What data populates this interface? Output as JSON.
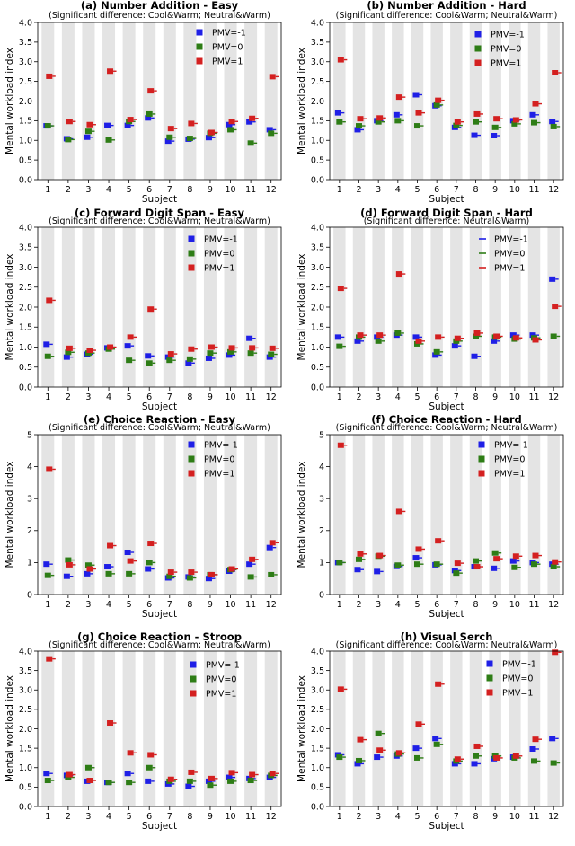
{
  "colors": {
    "pmv_neg1": "#1f1fe6",
    "pmv_0": "#2e7d16",
    "pmv_1": "#d42020",
    "band": "#e4e4e4"
  },
  "chart_data": [
    {
      "type": "scatter",
      "title": "(a) Number Addition - Easy",
      "subtitle": "(Significant difference: Cool&Warm; Neutral&Warm)",
      "xlabel": "Subject",
      "ylabel": "Mental workload index",
      "ylim": [
        0,
        4
      ],
      "yticks": [
        "0.0",
        "0.5",
        "1.0",
        "1.5",
        "2.0",
        "2.5",
        "3.0",
        "3.5",
        "4.0"
      ],
      "categories": [
        "1",
        "2",
        "3",
        "4",
        "5",
        "6",
        "7",
        "8",
        "9",
        "10",
        "11",
        "12"
      ],
      "legend_style": "square",
      "series": [
        {
          "name": "PMV=-1",
          "values": [
            1.37,
            1.04,
            1.08,
            1.38,
            1.38,
            1.57,
            0.98,
            1.03,
            1.07,
            1.4,
            1.47,
            1.27
          ]
        },
        {
          "name": "PMV=0",
          "values": [
            1.37,
            1.02,
            1.23,
            1.01,
            1.48,
            1.67,
            1.08,
            1.05,
            1.18,
            1.27,
            0.93,
            1.18
          ]
        },
        {
          "name": "PMV=1",
          "values": [
            2.63,
            1.48,
            1.4,
            2.76,
            1.53,
            2.26,
            1.3,
            1.43,
            1.2,
            1.48,
            1.56,
            2.62
          ]
        }
      ]
    },
    {
      "type": "scatter",
      "title": "(b) Number Addition - Hard",
      "subtitle": "(Significant difference: Cool&Warm; Neutral&Warm)",
      "xlabel": "Subject",
      "ylabel": "Mental workload index",
      "ylim": [
        0,
        4
      ],
      "yticks": [
        "0.0",
        "0.5",
        "1.0",
        "1.5",
        "2.0",
        "2.5",
        "3.0",
        "3.5",
        "4.0"
      ],
      "categories": [
        "1",
        "2",
        "3",
        "4",
        "5",
        "6",
        "7",
        "8",
        "9",
        "10",
        "11",
        "12"
      ],
      "legend_style": "square",
      "series": [
        {
          "name": "PMV=-1",
          "values": [
            1.7,
            1.27,
            1.5,
            1.65,
            2.16,
            1.88,
            1.33,
            1.13,
            1.12,
            1.5,
            1.65,
            1.48
          ]
        },
        {
          "name": "PMV=0",
          "values": [
            1.47,
            1.37,
            1.47,
            1.5,
            1.37,
            1.9,
            1.38,
            1.47,
            1.33,
            1.42,
            1.45,
            1.35
          ]
        },
        {
          "name": "PMV=1",
          "values": [
            3.05,
            1.55,
            1.57,
            2.1,
            1.7,
            2.02,
            1.47,
            1.67,
            1.55,
            1.52,
            1.93,
            2.72
          ]
        }
      ]
    },
    {
      "type": "scatter",
      "title": "(c) Forward Digit Span - Easy",
      "subtitle": "(Significant difference: Cool&Warm; Neutral&Warm)",
      "xlabel": "Subject",
      "ylabel": "Mental workload index",
      "ylim": [
        0,
        4
      ],
      "yticks": [
        "0.0",
        "0.5",
        "1.0",
        "1.5",
        "2.0",
        "2.5",
        "3.0",
        "3.5",
        "4.0"
      ],
      "categories": [
        "1",
        "2",
        "3",
        "4",
        "5",
        "6",
        "7",
        "8",
        "9",
        "10",
        "11",
        "12"
      ],
      "legend_style": "square",
      "series": [
        {
          "name": "PMV=-1",
          "values": [
            1.07,
            0.75,
            0.82,
            0.98,
            1.03,
            0.78,
            0.75,
            0.6,
            0.72,
            0.8,
            1.22,
            0.75
          ]
        },
        {
          "name": "PMV=0",
          "values": [
            0.77,
            0.87,
            0.85,
            0.95,
            0.67,
            0.6,
            0.67,
            0.7,
            0.85,
            0.88,
            0.85,
            0.82
          ]
        },
        {
          "name": "PMV=1",
          "values": [
            2.17,
            0.97,
            0.92,
            1.0,
            1.25,
            1.95,
            0.83,
            0.95,
            1.0,
            0.98,
            0.98,
            0.97
          ]
        }
      ]
    },
    {
      "type": "scatter",
      "title": "(d) Forward Digit Span - Hard",
      "subtitle": "(Significant difference: Neutral&Warm)",
      "xlabel": "Subject",
      "ylabel": "Mental workload index",
      "ylim": [
        0,
        4
      ],
      "yticks": [
        "0.0",
        "0.5",
        "1.0",
        "1.5",
        "2.0",
        "2.5",
        "3.0",
        "3.5",
        "4.0"
      ],
      "categories": [
        "1",
        "2",
        "3",
        "4",
        "5",
        "6",
        "7",
        "8",
        "9",
        "10",
        "11",
        "12"
      ],
      "legend_style": "line",
      "series": [
        {
          "name": "PMV=-1",
          "values": [
            1.25,
            1.15,
            1.25,
            1.3,
            1.25,
            0.8,
            1.03,
            0.77,
            1.15,
            1.3,
            1.3,
            2.7
          ]
        },
        {
          "name": "PMV=0",
          "values": [
            1.02,
            1.25,
            1.15,
            1.35,
            1.08,
            0.88,
            1.15,
            1.27,
            1.25,
            1.2,
            1.23,
            1.27
          ]
        },
        {
          "name": "PMV=1",
          "values": [
            2.47,
            1.3,
            1.3,
            2.83,
            1.15,
            1.25,
            1.22,
            1.35,
            1.27,
            1.23,
            1.18,
            2.02
          ]
        }
      ]
    },
    {
      "type": "scatter",
      "title": "(e) Choice Reaction - Easy",
      "subtitle": "(Significant difference: Cool&Warm; Neutral&Warm)",
      "xlabel": "Subject",
      "ylabel": "Mental workload index",
      "ylim": [
        0,
        5
      ],
      "yticks": [
        "0",
        "1",
        "2",
        "3",
        "4",
        "5"
      ],
      "categories": [
        "1",
        "2",
        "3",
        "4",
        "5",
        "6",
        "7",
        "8",
        "9",
        "10",
        "11",
        "12"
      ],
      "legend_style": "square",
      "series": [
        {
          "name": "PMV=-1",
          "values": [
            0.95,
            0.57,
            0.65,
            0.87,
            1.32,
            0.8,
            0.52,
            0.55,
            0.5,
            0.73,
            0.95,
            1.47
          ]
        },
        {
          "name": "PMV=0",
          "values": [
            0.6,
            1.08,
            0.92,
            0.65,
            0.65,
            1.0,
            0.57,
            0.52,
            0.62,
            0.78,
            0.55,
            0.62
          ]
        },
        {
          "name": "PMV=1",
          "values": [
            3.92,
            0.93,
            0.8,
            1.53,
            1.05,
            1.6,
            0.7,
            0.7,
            0.62,
            0.8,
            1.1,
            1.62
          ]
        }
      ]
    },
    {
      "type": "scatter",
      "title": "(f) Choice Reaction - Hard",
      "subtitle": "(Significant difference: Cool&Warm; Neutral&Warm)",
      "xlabel": "Subject",
      "ylabel": "Mental workload index",
      "ylim": [
        0,
        5
      ],
      "yticks": [
        "0",
        "1",
        "2",
        "3",
        "4",
        "5"
      ],
      "categories": [
        "1",
        "2",
        "3",
        "4",
        "5",
        "6",
        "7",
        "8",
        "9",
        "10",
        "11",
        "12"
      ],
      "legend_style": "square",
      "series": [
        {
          "name": "PMV=-1",
          "values": [
            1.0,
            0.78,
            0.72,
            0.88,
            1.15,
            0.93,
            0.75,
            0.87,
            0.82,
            1.05,
            1.0,
            0.95
          ]
        },
        {
          "name": "PMV=0",
          "values": [
            1.0,
            1.1,
            1.2,
            0.92,
            0.95,
            0.95,
            0.67,
            1.05,
            1.3,
            0.85,
            0.95,
            0.87
          ]
        },
        {
          "name": "PMV=1",
          "values": [
            4.67,
            1.27,
            1.22,
            2.6,
            1.42,
            1.68,
            0.98,
            0.87,
            1.12,
            1.2,
            1.22,
            1.02
          ]
        }
      ]
    },
    {
      "type": "scatter",
      "title": "(g) Choice Reaction - Stroop",
      "subtitle": "(Significant difference: Cool&Warm; Neutral&Warm)",
      "xlabel": "Subject",
      "ylabel": "Mental workload index",
      "ylim": [
        0,
        4
      ],
      "yticks": [
        "0.0",
        "0.5",
        "1.0",
        "1.5",
        "2.0",
        "2.5",
        "3.0",
        "3.5",
        "4.0"
      ],
      "categories": [
        "1",
        "2",
        "3",
        "4",
        "5",
        "6",
        "7",
        "8",
        "9",
        "10",
        "11",
        "12"
      ],
      "legend_style": "square",
      "series": [
        {
          "name": "PMV=-1",
          "values": [
            0.85,
            0.8,
            0.65,
            0.62,
            0.85,
            0.65,
            0.58,
            0.52,
            0.65,
            0.75,
            0.72,
            0.75
          ]
        },
        {
          "name": "PMV=0",
          "values": [
            0.67,
            0.75,
            1.0,
            0.62,
            0.62,
            1.0,
            0.65,
            0.65,
            0.55,
            0.65,
            0.67,
            0.8
          ]
        },
        {
          "name": "PMV=1",
          "values": [
            3.8,
            0.82,
            0.67,
            2.15,
            1.38,
            1.33,
            0.7,
            0.88,
            0.72,
            0.87,
            0.82,
            0.85
          ]
        }
      ]
    },
    {
      "type": "scatter",
      "title": "(h) Visual Serch",
      "subtitle": "(Significant difference: Cool&Warm; Neutral&Warm)",
      "xlabel": "Subject",
      "ylabel": "Mental workload index",
      "ylim": [
        0,
        4
      ],
      "yticks": [
        "0.0",
        "0.5",
        "1.0",
        "1.5",
        "2.0",
        "2.5",
        "3.0",
        "3.5",
        "4.0"
      ],
      "categories": [
        "1",
        "2",
        "3",
        "4",
        "5",
        "6",
        "7",
        "8",
        "9",
        "10",
        "11",
        "12"
      ],
      "legend_style": "square",
      "series": [
        {
          "name": "PMV=-1",
          "values": [
            1.33,
            1.1,
            1.27,
            1.3,
            1.5,
            1.75,
            1.1,
            1.1,
            1.23,
            1.27,
            1.48,
            1.75
          ]
        },
        {
          "name": "PMV=0",
          "values": [
            1.27,
            1.18,
            1.88,
            1.35,
            1.25,
            1.6,
            1.17,
            1.3,
            1.3,
            1.25,
            1.17,
            1.12
          ]
        },
        {
          "name": "PMV=1",
          "values": [
            3.02,
            1.72,
            1.45,
            1.38,
            2.12,
            3.15,
            1.22,
            1.55,
            1.25,
            1.3,
            1.73,
            3.97
          ]
        }
      ]
    }
  ]
}
